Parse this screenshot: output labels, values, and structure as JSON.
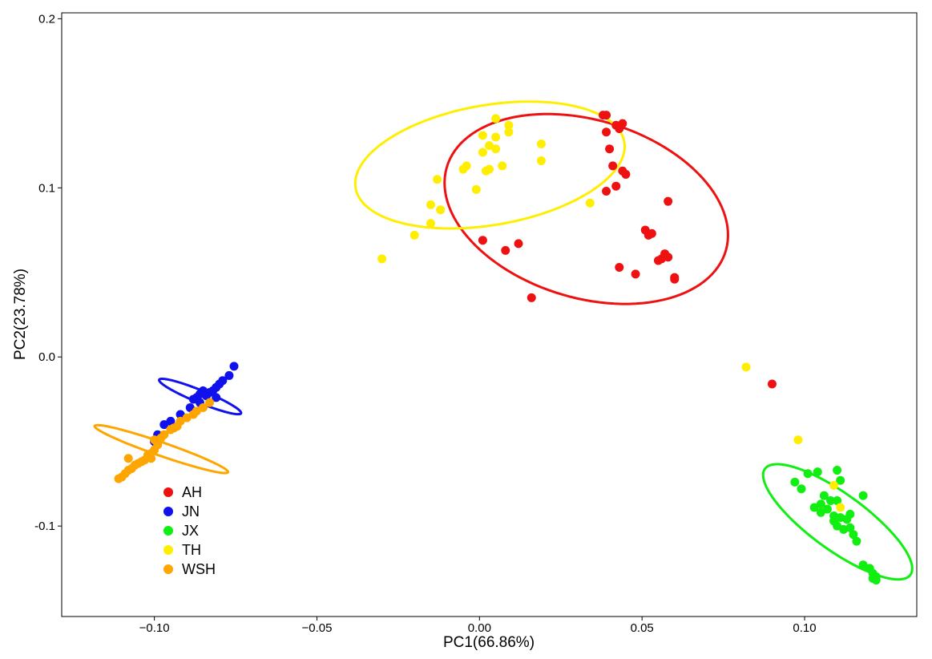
{
  "chart_data": {
    "type": "scatter",
    "title": "",
    "xlabel": "PC1(66.86%)",
    "ylabel": "PC2(23.78%)",
    "xlim": [
      -0.1285,
      0.1345
    ],
    "ylim": [
      -0.1535,
      0.2035
    ],
    "xticks": [
      -0.1,
      -0.05,
      0.0,
      0.05,
      0.1
    ],
    "xtick_labels": [
      "−0.10",
      "−0.05",
      "0.00",
      "0.05",
      "0.10"
    ],
    "yticks": [
      -0.1,
      0.0,
      0.1,
      0.2
    ],
    "ytick_labels": [
      "-0.1",
      "0.0",
      "0.1",
      "0.2"
    ],
    "grid": false,
    "legend_position": "bottom-left",
    "series": [
      {
        "name": "AH",
        "color": "#ee1111",
        "points": [
          [
            0.038,
            0.143
          ],
          [
            0.039,
            0.143
          ],
          [
            0.042,
            0.137
          ],
          [
            0.044,
            0.138
          ],
          [
            0.043,
            0.135
          ],
          [
            0.039,
            0.133
          ],
          [
            0.04,
            0.123
          ],
          [
            0.041,
            0.113
          ],
          [
            0.044,
            0.11
          ],
          [
            0.045,
            0.108
          ],
          [
            0.042,
            0.101
          ],
          [
            0.039,
            0.098
          ],
          [
            0.058,
            0.092
          ],
          [
            0.051,
            0.075
          ],
          [
            0.053,
            0.073
          ],
          [
            0.052,
            0.072
          ],
          [
            0.055,
            0.057
          ],
          [
            0.056,
            0.058
          ],
          [
            0.057,
            0.061
          ],
          [
            0.058,
            0.059
          ],
          [
            0.06,
            0.047
          ],
          [
            0.06,
            0.046
          ],
          [
            0.043,
            0.053
          ],
          [
            0.048,
            0.049
          ],
          [
            0.001,
            0.069
          ],
          [
            0.012,
            0.067
          ],
          [
            0.008,
            0.063
          ],
          [
            0.016,
            0.035
          ],
          [
            0.09,
            -0.016
          ]
        ],
        "ellipse": {
          "cx": 0.03285,
          "cy": 0.0875,
          "rx": 0.0587,
          "ry": 0.0401,
          "angle_deg": -66.5
        }
      },
      {
        "name": "JN",
        "color": "#1111ee",
        "points": [
          [
            -0.0755,
            -0.0055
          ],
          [
            -0.077,
            -0.011
          ],
          [
            -0.079,
            -0.014
          ],
          [
            -0.08,
            -0.016
          ],
          [
            -0.081,
            -0.018
          ],
          [
            -0.082,
            -0.02
          ],
          [
            -0.083,
            -0.021
          ],
          [
            -0.085,
            -0.02
          ],
          [
            -0.086,
            -0.022
          ],
          [
            -0.087,
            -0.024
          ],
          [
            -0.088,
            -0.025
          ],
          [
            -0.081,
            -0.024
          ],
          [
            -0.084,
            -0.023
          ],
          [
            -0.086,
            -0.027
          ],
          [
            -0.089,
            -0.03
          ],
          [
            -0.092,
            -0.034
          ],
          [
            -0.095,
            -0.038
          ],
          [
            -0.097,
            -0.04
          ],
          [
            -0.099,
            -0.046
          ],
          [
            -0.1,
            -0.05
          ]
        ],
        "ellipse": {
          "cx": -0.08593,
          "cy": -0.0234,
          "rx": 0.0161,
          "ry": 0.0031,
          "angle_deg": -39.3
        }
      },
      {
        "name": "JX",
        "color": "#11ee11",
        "points": [
          [
            0.11,
            -0.067
          ],
          [
            0.104,
            -0.068
          ],
          [
            0.101,
            -0.069
          ],
          [
            0.097,
            -0.074
          ],
          [
            0.099,
            -0.078
          ],
          [
            0.111,
            -0.073
          ],
          [
            0.118,
            -0.082
          ],
          [
            0.106,
            -0.082
          ],
          [
            0.108,
            -0.085
          ],
          [
            0.11,
            -0.085
          ],
          [
            0.105,
            -0.087
          ],
          [
            0.103,
            -0.089
          ],
          [
            0.107,
            -0.09
          ],
          [
            0.105,
            -0.092
          ],
          [
            0.109,
            -0.094
          ],
          [
            0.111,
            -0.095
          ],
          [
            0.113,
            -0.096
          ],
          [
            0.114,
            -0.093
          ],
          [
            0.109,
            -0.097
          ],
          [
            0.11,
            -0.1
          ],
          [
            0.112,
            -0.102
          ],
          [
            0.114,
            -0.101
          ],
          [
            0.115,
            -0.105
          ],
          [
            0.116,
            -0.109
          ],
          [
            0.118,
            -0.123
          ],
          [
            0.12,
            -0.125
          ],
          [
            0.121,
            -0.128
          ],
          [
            0.122,
            -0.13
          ],
          [
            0.121,
            -0.131
          ],
          [
            0.122,
            -0.132
          ]
        ],
        "ellipse": {
          "cx": 0.11017,
          "cy": -0.0975,
          "rx": 0.0394,
          "ry": 0.0116,
          "angle_deg": -58.3
        }
      },
      {
        "name": "TH",
        "color": "#ffee00",
        "points": [
          [
            0.005,
            0.141
          ],
          [
            0.009,
            0.137
          ],
          [
            0.001,
            0.131
          ],
          [
            0.005,
            0.13
          ],
          [
            0.009,
            0.133
          ],
          [
            0.003,
            0.125
          ],
          [
            0.005,
            0.123
          ],
          [
            0.001,
            0.121
          ],
          [
            0.019,
            0.126
          ],
          [
            0.019,
            0.116
          ],
          [
            -0.004,
            0.113
          ],
          [
            -0.005,
            0.111
          ],
          [
            0.007,
            0.113
          ],
          [
            0.003,
            0.111
          ],
          [
            0.002,
            0.11
          ],
          [
            -0.013,
            0.105
          ],
          [
            -0.001,
            0.099
          ],
          [
            0.034,
            0.091
          ],
          [
            -0.015,
            0.09
          ],
          [
            -0.012,
            0.087
          ],
          [
            -0.015,
            0.079
          ],
          [
            -0.02,
            0.072
          ],
          [
            -0.03,
            0.058
          ],
          [
            0.082,
            -0.006
          ],
          [
            0.098,
            -0.049
          ],
          [
            0.109,
            -0.076
          ],
          [
            0.111,
            -0.089
          ]
        ],
        "ellipse": {
          "cx": 0.00322,
          "cy": 0.1135,
          "rx": 0.0452,
          "ry": 0.0329,
          "angle_deg": 35.6
        }
      },
      {
        "name": "WSH",
        "color": "#ffa500",
        "points": [
          [
            -0.083,
            -0.027
          ],
          [
            -0.085,
            -0.03
          ],
          [
            -0.087,
            -0.032
          ],
          [
            -0.088,
            -0.034
          ],
          [
            -0.09,
            -0.036
          ],
          [
            -0.092,
            -0.038
          ],
          [
            -0.093,
            -0.041
          ],
          [
            -0.094,
            -0.042
          ],
          [
            -0.095,
            -0.043
          ],
          [
            -0.097,
            -0.046
          ],
          [
            -0.098,
            -0.048
          ],
          [
            -0.1,
            -0.049
          ],
          [
            -0.099,
            -0.052
          ],
          [
            -0.1,
            -0.055
          ],
          [
            -0.101,
            -0.057
          ],
          [
            -0.102,
            -0.058
          ],
          [
            -0.101,
            -0.06
          ],
          [
            -0.103,
            -0.061
          ],
          [
            -0.104,
            -0.062
          ],
          [
            -0.106,
            -0.064
          ],
          [
            -0.107,
            -0.066
          ],
          [
            -0.108,
            -0.067
          ],
          [
            -0.109,
            -0.069
          ],
          [
            -0.11,
            -0.071
          ],
          [
            -0.111,
            -0.072
          ],
          [
            -0.108,
            -0.06
          ],
          [
            -0.105,
            -0.063
          ]
        ],
        "ellipse": {
          "cx": -0.09785,
          "cy": -0.0545,
          "rx": 0.0247,
          "ry": 0.0035,
          "angle_deg": -34.2
        }
      }
    ]
  }
}
